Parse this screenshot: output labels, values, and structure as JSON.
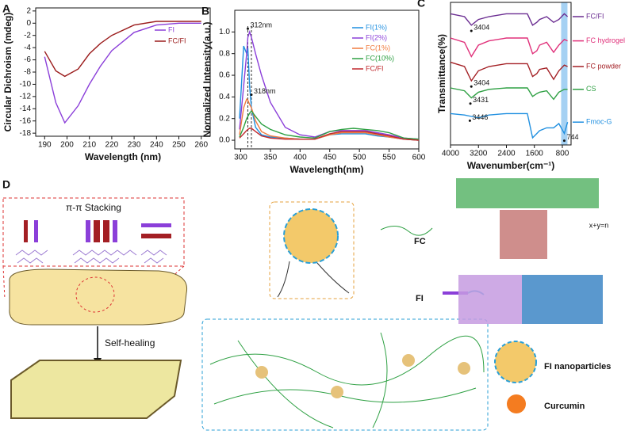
{
  "chart_data": [
    {
      "type": "line",
      "panel": "A",
      "xlabel": "Wavelength (nm)",
      "ylabel": "Circular Dichroism (mdeg)",
      "x": [
        190,
        195,
        199,
        205,
        210,
        215,
        220,
        230,
        240,
        250,
        260
      ],
      "series": [
        {
          "name": "FI",
          "color": "#8b3fd9",
          "values": [
            -5.5,
            -13,
            -16.3,
            -13.5,
            -10,
            -7,
            -4.5,
            -1.5,
            -0.3,
            0,
            0
          ]
        },
        {
          "name": "FC/FI",
          "color": "#9b1c1c",
          "values": [
            -4.6,
            -7.8,
            -8.7,
            -7.5,
            -5,
            -3.3,
            -2,
            -0.3,
            0.3,
            0.3,
            0.3
          ]
        }
      ],
      "xlim": [
        186,
        264
      ],
      "ylim": [
        -18.5,
        2.5
      ],
      "xticks": [
        190,
        200,
        210,
        220,
        230,
        240,
        250,
        260
      ],
      "yticks": [
        -18,
        -16,
        -14,
        -12,
        -10,
        -8,
        -6,
        -4,
        -2,
        0,
        2
      ],
      "legend": "upper right"
    },
    {
      "type": "line",
      "panel": "B",
      "xlabel": "Wavelength(nm)",
      "ylabel": "Normalized Intensity(a.u.)",
      "x": [
        298,
        305,
        310,
        312,
        315,
        318,
        325,
        335,
        350,
        375,
        400,
        425,
        450,
        470,
        490,
        510,
        530,
        550,
        575,
        600
      ],
      "series": [
        {
          "name": "FI(1%)",
          "color": "#1f8fe0",
          "values": [
            0.2,
            0.87,
            0.8,
            0.85,
            0.5,
            0.3,
            0.12,
            0.05,
            0.03,
            0.02,
            0.01,
            0.01,
            0.05,
            0.06,
            0.06,
            0.06,
            0.04,
            0.03,
            0.01,
            0
          ]
        },
        {
          "name": "FI(2%)",
          "color": "#8b3fd9",
          "values": [
            0.1,
            0.5,
            0.8,
            0.95,
            1.0,
            0.95,
            0.8,
            0.6,
            0.35,
            0.12,
            0.05,
            0.03,
            0.08,
            0.09,
            0.09,
            0.09,
            0.07,
            0.05,
            0.02,
            0.01
          ]
        },
        {
          "name": "FC(1%)",
          "color": "#f07b3f",
          "values": [
            0.05,
            0.3,
            0.38,
            0.37,
            0.33,
            0.3,
            0.18,
            0.08,
            0.04,
            0.02,
            0.01,
            0.01,
            0.05,
            0.07,
            0.07,
            0.07,
            0.05,
            0.03,
            0.01,
            0
          ]
        },
        {
          "name": "FC(10%)",
          "color": "#2ea043",
          "values": [
            0.03,
            0.12,
            0.2,
            0.22,
            0.25,
            0.27,
            0.22,
            0.15,
            0.1,
            0.05,
            0.03,
            0.02,
            0.08,
            0.1,
            0.11,
            0.1,
            0.09,
            0.07,
            0.02,
            0.01
          ]
        },
        {
          "name": "FC/FI",
          "color": "#c0282d",
          "values": [
            0.02,
            0.06,
            0.09,
            0.1,
            0.11,
            0.11,
            0.08,
            0.04,
            0.02,
            0.01,
            0.01,
            0.01,
            0.06,
            0.08,
            0.08,
            0.08,
            0.06,
            0.04,
            0.01,
            0
          ]
        }
      ],
      "xlim": [
        290,
        600
      ],
      "ylim": [
        -0.08,
        1.2
      ],
      "xticks": [
        300,
        350,
        400,
        450,
        500,
        550,
        600
      ],
      "yticks": [
        {
          "value": 0,
          "label": "0.0"
        },
        0.2,
        0.4,
        0.6,
        0.8,
        {
          "value": 1,
          "label": "1.0"
        }
      ],
      "vlines": [
        312,
        318
      ],
      "annotations": [
        {
          "text": "312nm",
          "x": 312,
          "y": 1.03
        },
        {
          "text": "318nm",
          "x": 318,
          "y": 0.42
        }
      ],
      "legend": "right"
    },
    {
      "type": "line",
      "panel": "C",
      "xlabel": "Wavenumber(cm⁻¹)",
      "ylabel": "Transmittance(%)",
      "x": [
        4000,
        3600,
        3404,
        3200,
        2900,
        2400,
        1800,
        1650,
        1530,
        1450,
        1250,
        1050,
        900,
        744,
        650
      ],
      "series": [
        {
          "name": "FC/FI",
          "color": "#6a2c91",
          "values": [
            92,
            90,
            84,
            88,
            90,
            92,
            92,
            84,
            86,
            88,
            90,
            86,
            88,
            92,
            90
          ]
        },
        {
          "name": "FC hydrogel",
          "color": "#e0307a",
          "values": [
            75,
            72,
            62,
            70,
            73,
            75,
            75,
            64,
            66,
            70,
            72,
            65,
            70,
            74,
            73
          ]
        },
        {
          "name": "FC powder",
          "color": "#a31f24",
          "values": [
            58,
            55,
            45,
            52,
            55,
            57,
            57,
            48,
            50,
            53,
            54,
            46,
            52,
            56,
            55
          ]
        },
        {
          "name": "CS",
          "color": "#2ea043",
          "values": [
            40,
            38,
            33,
            37,
            39,
            40,
            40,
            34,
            36,
            37,
            38,
            32,
            37,
            39,
            39
          ]
        },
        {
          "name": "Fmoc-G",
          "color": "#1f8fe0",
          "values": [
            22,
            21,
            20,
            19,
            21,
            22,
            22,
            5,
            8,
            10,
            12,
            12,
            15,
            8,
            16
          ]
        }
      ],
      "xlim": [
        4000,
        550
      ],
      "ylim": [
        0,
        100
      ],
      "xticks": [
        4000,
        3200,
        2400,
        1600,
        800
      ],
      "highlight_x": 744,
      "annotations": [
        {
          "text": "3404",
          "x": 3404,
          "y": 80
        },
        {
          "text": "3404",
          "x": 3404,
          "y": 41
        },
        {
          "text": "3431",
          "x": 3431,
          "y": 29
        },
        {
          "text": "3446",
          "x": 3446,
          "y": 17
        },
        {
          "text": "744",
          "x": 744,
          "y": 3
        }
      ],
      "legend": "end"
    }
  ],
  "diagram": {
    "label": "D",
    "stacking_title": "π-π Stacking",
    "self_healing": "Self-healing",
    "items": [
      {
        "label": "FC"
      },
      {
        "label": "FI"
      },
      {
        "label": "FI nanoparticles"
      },
      {
        "label": "Curcumin"
      }
    ],
    "formula_note": "x+y=n"
  }
}
